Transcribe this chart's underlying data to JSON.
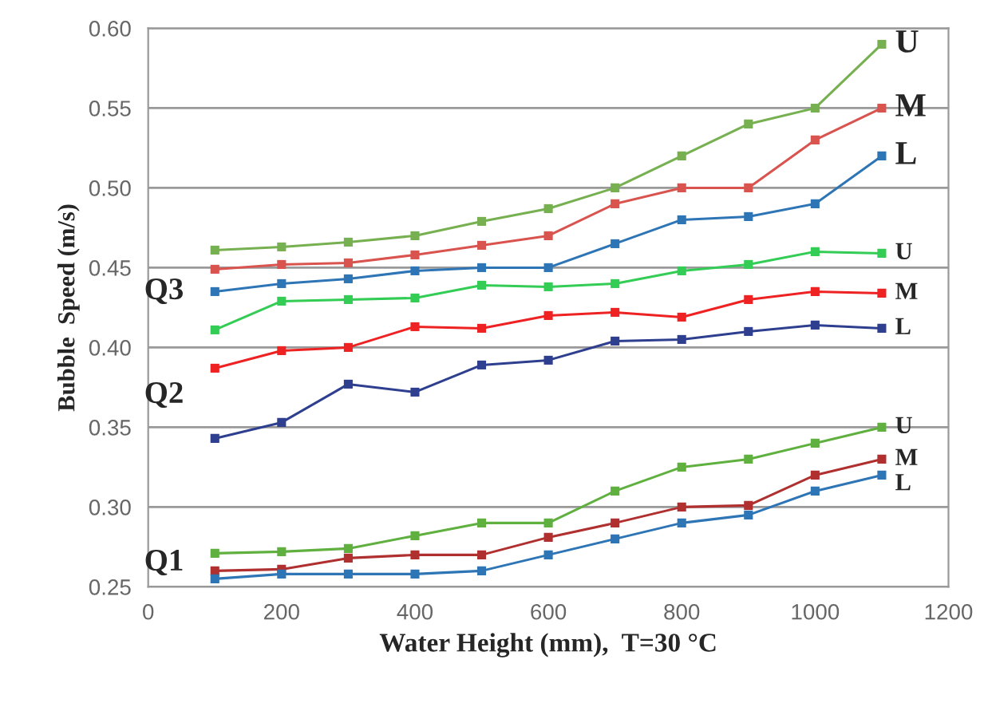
{
  "chart_data": {
    "type": "line",
    "xlabel": "Water Height (mm),  T=30 °C",
    "ylabel": "Bubble  Speed (m/s)",
    "x": [
      100,
      200,
      300,
      400,
      500,
      600,
      700,
      800,
      900,
      1000,
      1100
    ],
    "series": [
      {
        "name": "U",
        "color": "#77b050",
        "values": [
          0.461,
          0.463,
          0.466,
          0.47,
          0.479,
          0.487,
          0.5,
          0.52,
          0.54,
          0.55,
          0.59
        ]
      },
      {
        "name": "M",
        "color": "#d9534f",
        "values": [
          0.449,
          0.452,
          0.453,
          0.458,
          0.464,
          0.47,
          0.49,
          0.5,
          0.5,
          0.53,
          0.55
        ]
      },
      {
        "name": "L",
        "color": "#2e75b6",
        "values": [
          0.435,
          0.44,
          0.443,
          0.448,
          0.45,
          0.45,
          0.465,
          0.48,
          0.482,
          0.49,
          0.52
        ]
      },
      {
        "name": "U",
        "color": "#33cc55",
        "values": [
          0.411,
          0.429,
          0.43,
          0.431,
          0.439,
          0.438,
          0.44,
          0.448,
          0.452,
          0.46,
          0.459
        ]
      },
      {
        "name": "M",
        "color": "#ee2222",
        "values": [
          0.387,
          0.398,
          0.4,
          0.413,
          0.412,
          0.42,
          0.422,
          0.419,
          0.43,
          0.435,
          0.434
        ]
      },
      {
        "name": "L",
        "color": "#2f3f8f",
        "values": [
          0.343,
          0.353,
          0.377,
          0.372,
          0.389,
          0.392,
          0.404,
          0.405,
          0.41,
          0.414,
          0.412
        ]
      },
      {
        "name": "U",
        "color": "#60b040",
        "values": [
          0.271,
          0.272,
          0.274,
          0.282,
          0.29,
          0.29,
          0.31,
          0.325,
          0.33,
          0.34,
          0.35
        ]
      },
      {
        "name": "M",
        "color": "#b03030",
        "values": [
          0.26,
          0.261,
          0.268,
          0.27,
          0.27,
          0.281,
          0.29,
          0.3,
          0.301,
          0.32,
          0.33
        ]
      },
      {
        "name": "L",
        "color": "#2e75b6",
        "values": [
          0.255,
          0.258,
          0.258,
          0.258,
          0.26,
          0.27,
          0.28,
          0.29,
          0.295,
          0.31,
          0.32
        ]
      }
    ],
    "annotations": [
      "Q3",
      "Q2",
      "Q1"
    ],
    "xlim": [
      0,
      1200
    ],
    "xticks": [
      0,
      200,
      400,
      600,
      800,
      1000,
      1200
    ],
    "ylim": [
      0.25,
      0.6
    ],
    "yticks": [
      {
        "value": 0.25,
        "label": "0.25"
      },
      {
        "value": 0.3,
        "label": "0.30"
      },
      {
        "value": 0.35,
        "label": "0.35"
      },
      {
        "value": 0.4,
        "label": "0.40"
      },
      {
        "value": 0.45,
        "label": "0.45"
      },
      {
        "value": 0.5,
        "label": "0.50"
      },
      {
        "value": 0.55,
        "label": "0.55"
      },
      {
        "value": 0.6,
        "label": "0.60"
      }
    ],
    "grid": "y",
    "marker": "square",
    "line_style": "solid"
  }
}
